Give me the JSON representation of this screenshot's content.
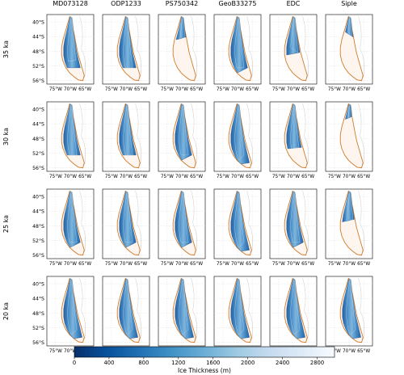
{
  "chart_data": {
    "type": "heatmap",
    "columns": [
      "MD073128",
      "ODP1233",
      "PS750342",
      "GeoB33275",
      "EDC",
      "Siple"
    ],
    "rows": [
      "35 ka",
      "30 ka",
      "25 ka",
      "20 ka"
    ],
    "lat_tick_labels": [
      "40°S",
      "44°S",
      "48°S",
      "52°S",
      "56°S"
    ],
    "lon_tick_labels": [
      "75°W",
      "70°W",
      "65°W"
    ],
    "lat_range": [
      -57,
      -38
    ],
    "lon_range": [
      -78,
      -62
    ],
    "ice_extent_fraction": [
      [
        0.8,
        0.85,
        0.4,
        0.9,
        0.6,
        0.35
      ],
      [
        0.85,
        0.85,
        0.9,
        0.95,
        0.75,
        0.25
      ],
      [
        0.9,
        0.9,
        0.9,
        0.95,
        0.9,
        0.5
      ],
      [
        0.95,
        0.95,
        0.95,
        0.95,
        0.95,
        0.95
      ]
    ],
    "colorbar": {
      "label": "Ice Thickness (m)",
      "min": 0,
      "max": 3000,
      "ticks": [
        0,
        400,
        800,
        1200,
        1600,
        2000,
        2400,
        2800
      ],
      "tick_labels": [
        "0",
        "400",
        "800",
        "1200",
        "1600",
        "2000",
        "2400",
        "2800"
      ],
      "colors": [
        "#08306b",
        "#08519c",
        "#2171b5",
        "#4292c6",
        "#6baed6",
        "#9ecae1",
        "#c6dbef",
        "#deebf7",
        "#f7fbff"
      ]
    },
    "outline_color": "#d07a2a",
    "coast_color": "#555555"
  }
}
